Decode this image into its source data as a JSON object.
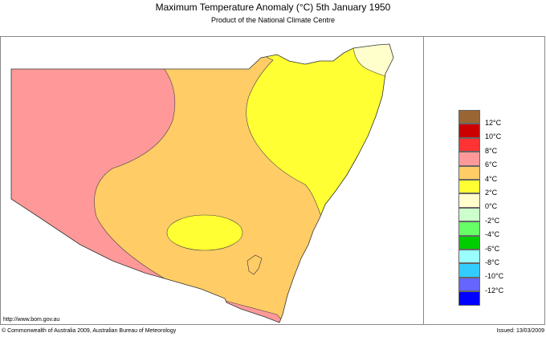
{
  "header": {
    "title": "Maximum Temperature Anomaly (°C)  5th January 1950",
    "subtitle": "Product of the National Climate Centre"
  },
  "footer": {
    "url": "http://www.bom.gov.au",
    "copyright": "© Commonwealth of Australia 2009, Australian Bureau of Meteorology",
    "issued": "Issued: 13/03/2009"
  },
  "legend": {
    "colors": [
      "#996633",
      "#cc0000",
      "#ff3333",
      "#ff9999",
      "#ffcc66",
      "#ffff33",
      "#ffffcc",
      "#ccffcc",
      "#66ff66",
      "#00cc00",
      "#99ffff",
      "#33ccff",
      "#6666ff",
      "#0000ff"
    ],
    "labels": [
      "12°C",
      "10°C",
      "8°C",
      "6°C",
      "4°C",
      "2°C",
      "0°C",
      "-2°C",
      "-4°C",
      "-6°C",
      "-8°C",
      "-10°C",
      "-12°C"
    ]
  },
  "map": {
    "region": "New South Wales",
    "zones": [
      {
        "anomaly": "4 to 6°C",
        "color": "#ffcc66"
      },
      {
        "anomaly": "6 to 8°C",
        "color": "#ff9999"
      },
      {
        "anomaly": "2 to 4°C",
        "color": "#ffff33"
      },
      {
        "anomaly": "0 to 2°C",
        "color": "#ffffcc"
      }
    ]
  }
}
